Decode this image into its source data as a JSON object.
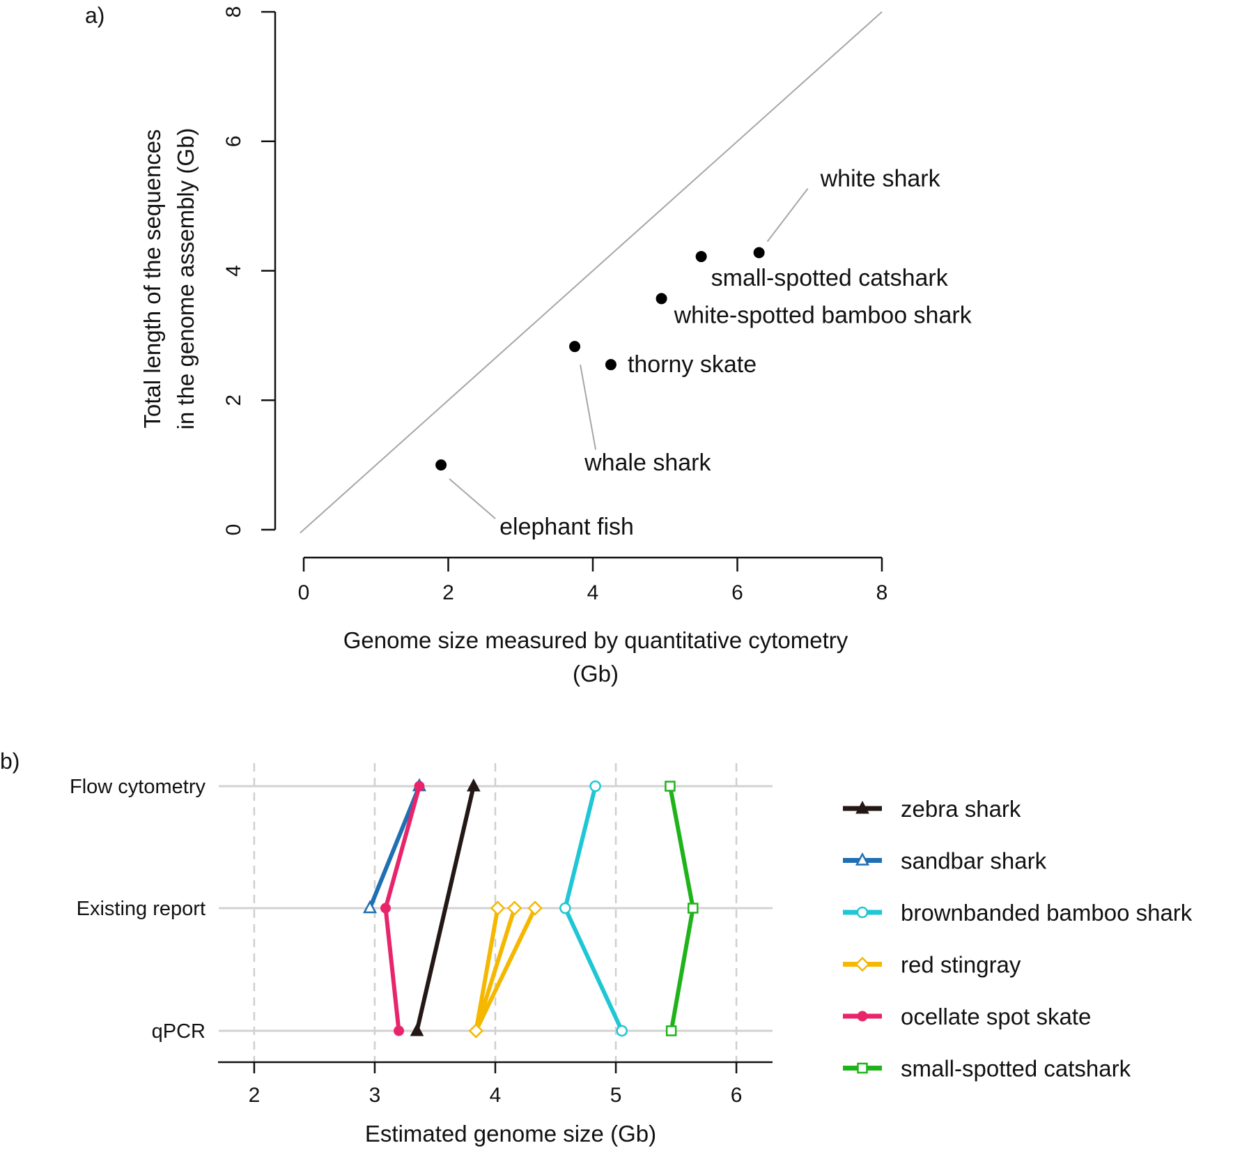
{
  "chart_data": [
    {
      "type": "scatter",
      "panel_label": "a)",
      "xlabel_line1": "Genome size measured by quantitative cytometry",
      "xlabel_line2": "(Gb)",
      "ylabel_line1": "Total length of the sequences",
      "ylabel_line2": "in the genome assembly (Gb)",
      "xlim": [
        0,
        8
      ],
      "ylim": [
        0,
        8
      ],
      "xticks": [
        "0",
        "2",
        "4",
        "6",
        "8"
      ],
      "yticks": [
        "0",
        "2",
        "4",
        "6",
        "8"
      ],
      "reference_line": "y = x",
      "points": [
        {
          "name": "elephant fish",
          "x": 1.9,
          "y": 1.0
        },
        {
          "name": "whale shark",
          "x": 3.75,
          "y": 2.83
        },
        {
          "name": "thorny skate",
          "x": 4.25,
          "y": 2.55
        },
        {
          "name": "white-spotted bamboo shark",
          "x": 4.95,
          "y": 3.57
        },
        {
          "name": "small-spotted catshark",
          "x": 5.5,
          "y": 4.22
        },
        {
          "name": "white shark",
          "x": 6.3,
          "y": 4.28
        }
      ]
    },
    {
      "type": "line",
      "panel_label": "b)",
      "xlabel": "Estimated genome size (Gb)",
      "xlim": [
        1.7,
        6.3
      ],
      "xticks": [
        "2",
        "3",
        "4",
        "5",
        "6"
      ],
      "categories": [
        "Flow cytometry",
        "Existing report",
        "qPCR"
      ],
      "grid": "vertical dashed at integer x; horizontal solid at each category",
      "legend_placement": "right",
      "series": [
        {
          "name": "zebra shark",
          "color": "#231815",
          "marker": "filled-triangle",
          "points": [
            {
              "x": 3.82,
              "cat": "Flow cytometry"
            },
            {
              "x": 3.35,
              "cat": "qPCR"
            }
          ]
        },
        {
          "name": "sandbar shark",
          "color": "#1f6fb4",
          "marker": "open-triangle",
          "points": [
            {
              "x": 3.37,
              "cat": "Flow cytometry"
            },
            {
              "x": 2.96,
              "cat": "Existing report"
            }
          ]
        },
        {
          "name": "brownbanded bamboo shark",
          "color": "#1fc6d4",
          "marker": "open-circle",
          "points": [
            {
              "x": 4.83,
              "cat": "Flow cytometry"
            },
            {
              "x": 4.58,
              "cat": "Existing report"
            },
            {
              "x": 5.05,
              "cat": "qPCR"
            }
          ]
        },
        {
          "name": "red stingray",
          "color": "#f5b700",
          "marker": "open-diamond",
          "points": [
            {
              "x": 3.84,
              "cat": "qPCR"
            },
            {
              "x": 4.02,
              "cat": "Existing report"
            },
            {
              "x": 4.16,
              "cat": "Existing report"
            },
            {
              "x": 4.33,
              "cat": "Existing report"
            }
          ],
          "links": [
            [
              0,
              1
            ],
            [
              0,
              2
            ],
            [
              0,
              3
            ]
          ]
        },
        {
          "name": "ocellate spot skate",
          "color": "#e8246a",
          "marker": "filled-circle",
          "points": [
            {
              "x": 3.37,
              "cat": "Flow cytometry"
            },
            {
              "x": 3.09,
              "cat": "Existing report"
            },
            {
              "x": 3.2,
              "cat": "qPCR"
            }
          ]
        },
        {
          "name": "small-spotted catshark",
          "color": "#1fb31a",
          "marker": "open-square",
          "points": [
            {
              "x": 5.45,
              "cat": "Flow cytometry"
            },
            {
              "x": 5.64,
              "cat": "Existing report"
            },
            {
              "x": 5.46,
              "cat": "qPCR"
            }
          ]
        }
      ]
    }
  ]
}
